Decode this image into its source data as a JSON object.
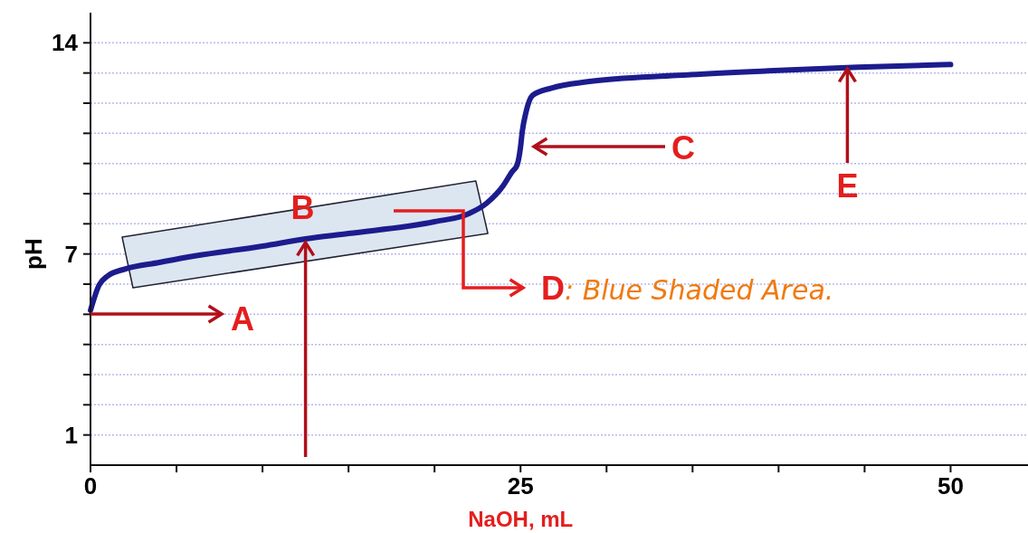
{
  "chart_data": {
    "type": "line",
    "xlabel": "NaOH, mL",
    "ylabel": "pH",
    "x": [
      0,
      0.5,
      1,
      2,
      4,
      6,
      10,
      12.5,
      15,
      20,
      22,
      23,
      24,
      24.5,
      24.8,
      25,
      25.1,
      25.3,
      25.7,
      26.8,
      28.9,
      34.1,
      39.4,
      44.6,
      50
    ],
    "series": [
      {
        "color": "#1c1c8e",
        "values": [
          5.13,
          5.97,
          6.27,
          6.5,
          6.72,
          6.93,
          7.26,
          7.5,
          7.68,
          8.07,
          8.34,
          8.67,
          9.27,
          9.72,
          9.95,
          10.55,
          11.06,
          11.66,
          12.26,
          12.5,
          12.71,
          12.92,
          13.07,
          13.19,
          13.28
        ]
      }
    ],
    "xlim": [
      0,
      54.5
    ],
    "ylim": [
      0,
      15
    ],
    "xticks": [
      0,
      {
        "value": 5,
        "label": null
      },
      {
        "value": 10,
        "label": null
      },
      {
        "value": 15,
        "label": null
      },
      {
        "value": 20,
        "label": null
      },
      25,
      {
        "value": 30,
        "label": null
      },
      {
        "value": 35,
        "label": null
      },
      {
        "value": 40,
        "label": null
      },
      {
        "value": 45,
        "label": null
      },
      50
    ],
    "yticks": [
      1,
      {
        "value": 2,
        "label": null
      },
      {
        "value": 3,
        "label": null
      },
      {
        "value": 4,
        "label": null
      },
      {
        "value": 5,
        "label": null
      },
      {
        "value": 6,
        "label": null
      },
      7,
      {
        "value": 8,
        "label": null
      },
      {
        "value": 9,
        "label": null
      },
      {
        "value": 10,
        "label": null
      },
      {
        "value": 11,
        "label": null
      },
      {
        "value": 12,
        "label": null
      },
      {
        "value": 13,
        "label": null
      },
      14
    ],
    "grid": "y",
    "marker": "none",
    "line_style": "solid",
    "annotations": [
      {
        "text": "A",
        "x": 0,
        "y": 5.13
      },
      {
        "text": "B",
        "x": 12.5,
        "y": 7.5
      },
      "C",
      "D: Blue Shaded Area.",
      {
        "text": "E",
        "x": 44,
        "y": 13.2
      }
    ]
  }
}
